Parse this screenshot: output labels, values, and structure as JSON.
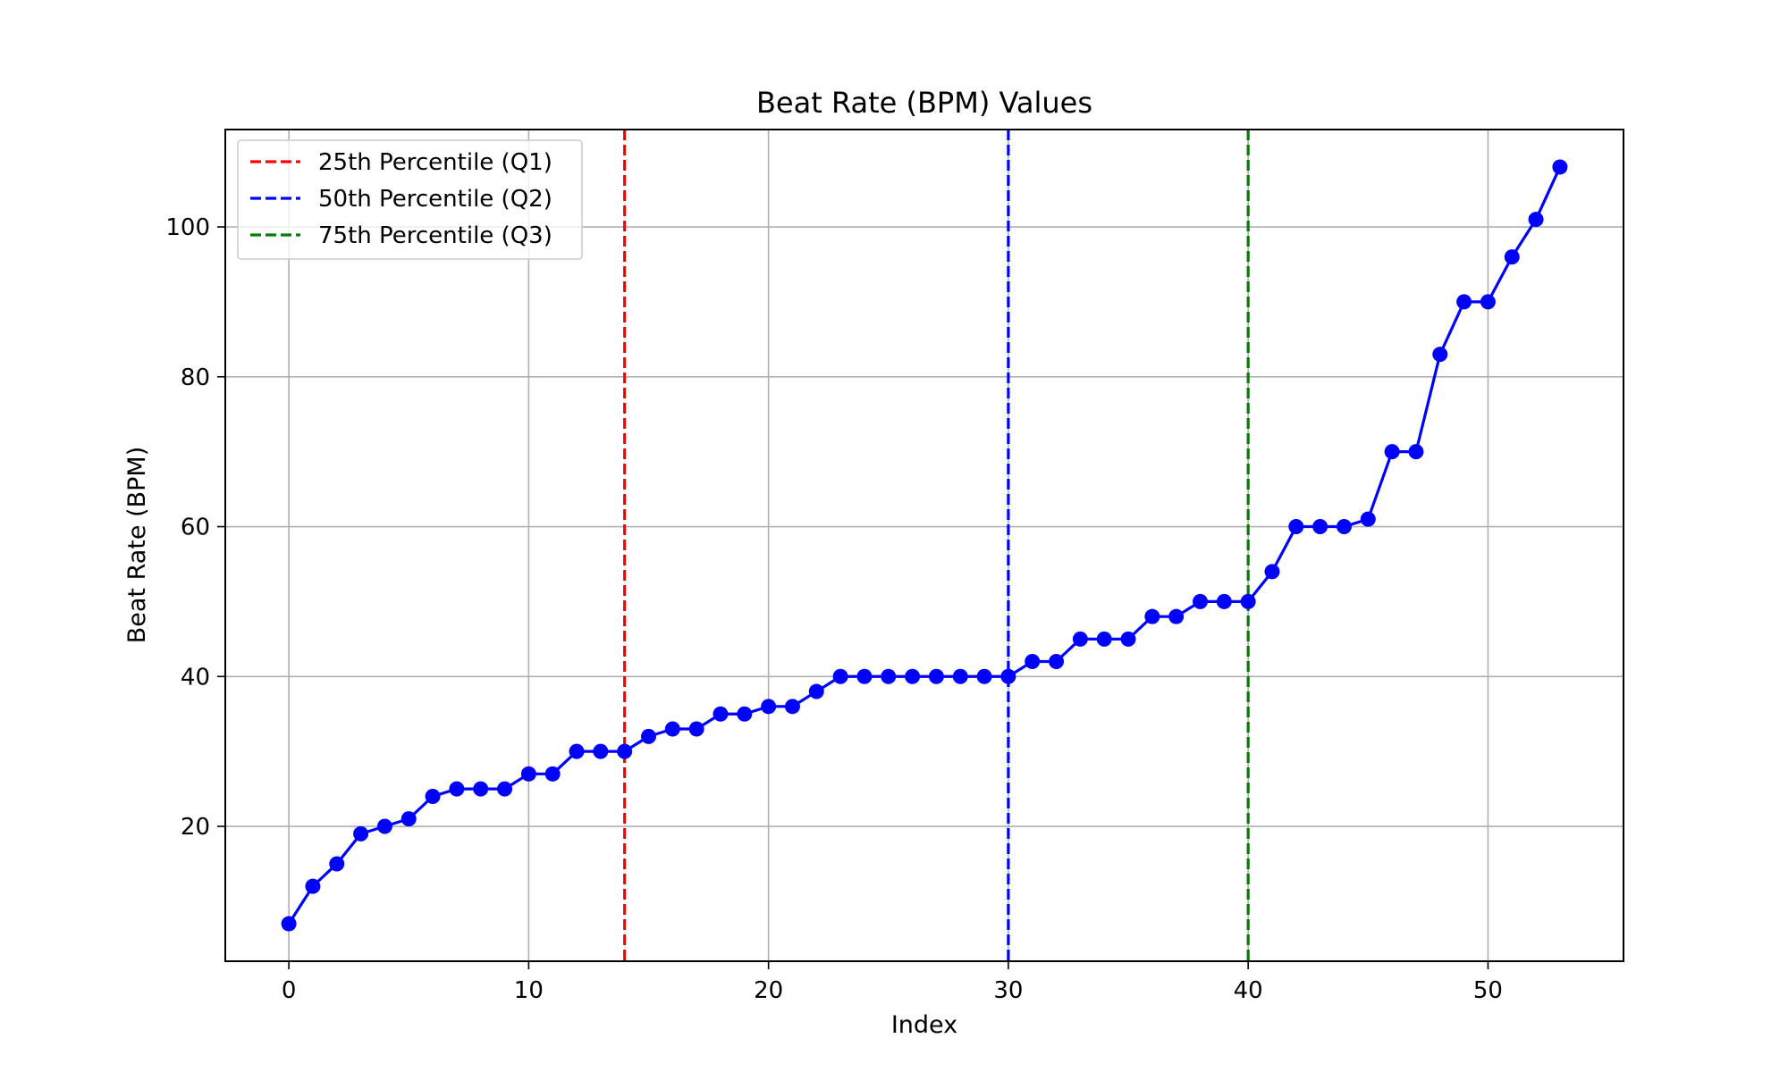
{
  "chart_data": {
    "type": "line",
    "title": "Beat Rate (BPM) Values",
    "xlabel": "Index",
    "ylabel": "Beat Rate (BPM)",
    "xlim": [
      -2.65,
      55.65
    ],
    "ylim": [
      2.0,
      113.0
    ],
    "xticks": [
      0,
      10,
      20,
      30,
      40,
      50
    ],
    "yticks": [
      20,
      40,
      60,
      80,
      100
    ],
    "grid": true,
    "legend_position": "top-left",
    "series": [
      {
        "color": "#0000ff",
        "marker": "circle",
        "x": [
          0,
          1,
          2,
          3,
          4,
          5,
          6,
          7,
          8,
          9,
          10,
          11,
          12,
          13,
          14,
          15,
          16,
          17,
          18,
          19,
          20,
          21,
          22,
          23,
          24,
          25,
          26,
          27,
          28,
          29,
          30,
          31,
          32,
          33,
          34,
          35,
          36,
          37,
          38,
          39,
          40,
          41,
          42,
          43,
          44,
          45,
          46,
          47,
          48,
          49,
          50,
          51,
          52,
          53
        ],
        "values": [
          7,
          12,
          15,
          19,
          20,
          21,
          24,
          25,
          25,
          25,
          27,
          27,
          30,
          30,
          30,
          32,
          33,
          33,
          35,
          35,
          36,
          36,
          38,
          40,
          40,
          40,
          40,
          40,
          40,
          40,
          40,
          42,
          42,
          45,
          45,
          45,
          48,
          48,
          50,
          50,
          50,
          54,
          60,
          60,
          60,
          61,
          70,
          70,
          83,
          90,
          90,
          96,
          101,
          108
        ]
      }
    ],
    "reference_lines": [
      {
        "name": "25th Percentile (Q1)",
        "x": 14,
        "color": "#ff0000",
        "style": "dashed"
      },
      {
        "name": "50th Percentile (Q2)",
        "x": 30,
        "color": "#0000ff",
        "style": "dashed"
      },
      {
        "name": "75th Percentile (Q3)",
        "x": 40,
        "color": "#008000",
        "style": "dashed"
      }
    ]
  }
}
